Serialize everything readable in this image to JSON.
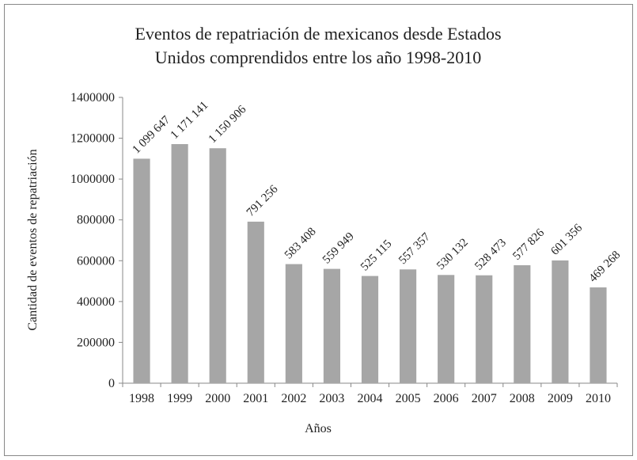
{
  "chart_data": {
    "type": "bar",
    "title": [
      "Eventos de repatriación de mexicanos desde Estados",
      "Unidos comprendidos entre los año 1998-2010"
    ],
    "x_label": "Años",
    "y_label": "Cantidad de eventos de repatriación",
    "categories": [
      "1998",
      "1999",
      "2000",
      "2001",
      "2002",
      "2003",
      "2004",
      "2005",
      "2006",
      "2007",
      "2008",
      "2009",
      "2010"
    ],
    "values": [
      1099647,
      1171141,
      1150906,
      791256,
      583408,
      559949,
      525115,
      557357,
      530132,
      528473,
      577826,
      601356,
      469268
    ],
    "value_labels": [
      "1 099 647",
      "1 171 141",
      "1 150 906",
      "791 256",
      "583 408",
      "559 949",
      "525 115",
      "557 357",
      "530 132",
      "528 473",
      "577 826",
      "601 356",
      "469 268"
    ],
    "color": "#a6a6a6",
    "ylim": [
      0,
      1400000
    ],
    "yticks": [
      0,
      200000,
      400000,
      600000,
      800000,
      1000000,
      1200000,
      1400000
    ],
    "grid": false
  }
}
